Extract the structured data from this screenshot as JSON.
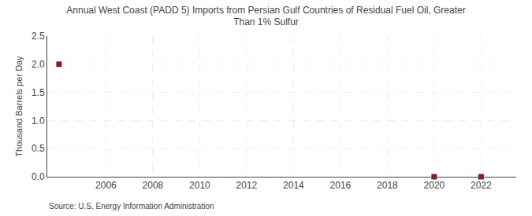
{
  "chart_data": {
    "type": "scatter",
    "title": "Annual West Coast (PADD 5) Imports from Persian Gulf Countries of Residual Fuel Oil, Greater\nThan 1% Sulfur",
    "ylabel": "Thousand Barrels per Day",
    "annotations": [
      "Source: U.S. Energy Information Administration"
    ],
    "x": [
      2004,
      2020,
      2022
    ],
    "values": [
      2.0,
      0.0,
      0.0
    ],
    "color": "#8b1a1a",
    "marker": "square",
    "xlim": [
      2003.5,
      2023.5
    ],
    "ylim": [
      0,
      2.5
    ],
    "xticks": [
      2006,
      2008,
      2010,
      2012,
      2014,
      2016,
      2018,
      2020,
      2022
    ],
    "yticks": [
      {
        "value": 0.0,
        "label": "0.0"
      },
      0.5,
      {
        "value": 1.0,
        "label": "1.0"
      },
      1.5,
      {
        "value": 2.0,
        "label": "2.0"
      },
      2.5
    ],
    "grid": true
  }
}
